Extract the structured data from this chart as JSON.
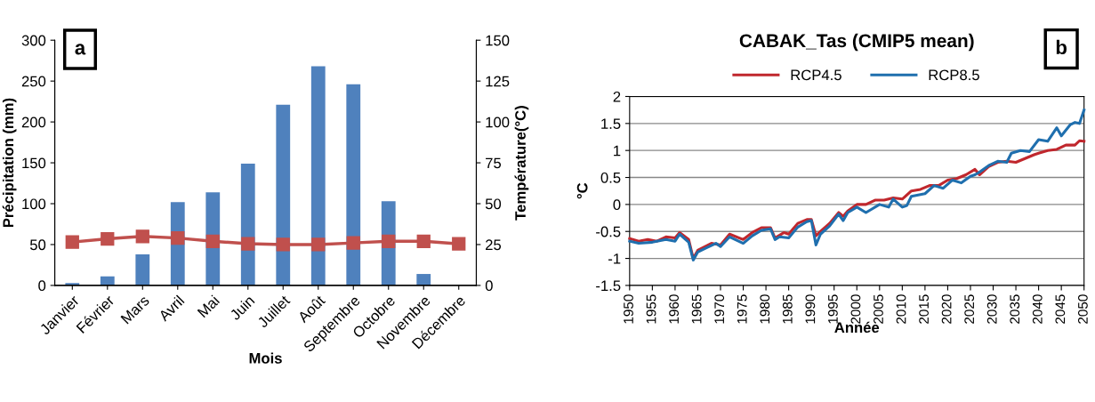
{
  "chart_data": [
    {
      "type": "bar",
      "xlabel": "Mois",
      "ylabel": "Précipitation (mm)",
      "y2label": "Température(°C)",
      "annotations": [
        "a"
      ],
      "categories": [
        "Janvier",
        "Février",
        "Mars",
        "Avril",
        "Mai",
        "Juin",
        "Juillet",
        "Août",
        "Septembre",
        "Octobre",
        "Novembre",
        "Décembre"
      ],
      "series": [
        {
          "type": "bar",
          "color": "#4f81bd",
          "values": [
            3,
            11,
            38,
            102,
            114,
            149,
            221,
            268,
            246,
            103,
            14,
            0
          ]
        },
        {
          "type": "line",
          "axis": "y2",
          "color": "#c0504d",
          "marker": "square",
          "values": [
            26.5,
            28.5,
            30,
            29,
            27,
            25.5,
            25,
            25,
            26,
            27,
            27,
            25.5
          ]
        }
      ],
      "ylim": [
        0,
        300
      ],
      "yticks": [
        0,
        50,
        100,
        150,
        200,
        250,
        300
      ],
      "y2lim": [
        0,
        150
      ],
      "y2ticks": [
        0,
        25,
        50,
        75,
        100,
        125,
        150
      ],
      "grid": false,
      "legend": false
    },
    {
      "type": "line",
      "title": "CABAK_Tas (CMIP5 mean)",
      "xlabel": "Année",
      "ylabel": "°C",
      "annotations": [
        "b"
      ],
      "series": [
        {
          "name": "RCP4.5",
          "color": "#c0272d",
          "x": [
            1950,
            1952,
            1954,
            1956,
            1958,
            1960,
            1961,
            1963,
            1964,
            1965,
            1968,
            1970,
            1972,
            1975,
            1977,
            1979,
            1981,
            1982,
            1984,
            1985,
            1987,
            1989,
            1990,
            1991,
            1992,
            1994,
            1996,
            1997,
            1998,
            2000,
            2002,
            2004,
            2006,
            2008,
            2010,
            2012,
            2014,
            2016,
            2018,
            2020,
            2022,
            2024,
            2026,
            2027,
            2029,
            2031,
            2033,
            2035,
            2037,
            2039,
            2040,
            2042,
            2044,
            2046,
            2048,
            2049,
            2050
          ],
          "values": [
            -0.63,
            -0.68,
            -0.65,
            -0.68,
            -0.6,
            -0.62,
            -0.52,
            -0.65,
            -1.0,
            -0.85,
            -0.72,
            -0.75,
            -0.55,
            -0.65,
            -0.52,
            -0.43,
            -0.43,
            -0.62,
            -0.52,
            -0.55,
            -0.35,
            -0.28,
            -0.28,
            -0.58,
            -0.5,
            -0.35,
            -0.15,
            -0.22,
            -0.12,
            0.0,
            0.0,
            0.08,
            0.08,
            0.12,
            0.1,
            0.25,
            0.28,
            0.35,
            0.35,
            0.45,
            0.48,
            0.55,
            0.65,
            0.55,
            0.7,
            0.78,
            0.8,
            0.78,
            0.85,
            0.92,
            0.95,
            1.0,
            1.02,
            1.1,
            1.1,
            1.18,
            1.17
          ]
        },
        {
          "name": "RCP8.5",
          "color": "#1f6fae",
          "x": [
            1950,
            1952,
            1955,
            1958,
            1960,
            1961,
            1963,
            1964,
            1965,
            1967,
            1969,
            1970,
            1972,
            1975,
            1977,
            1979,
            1981,
            1982,
            1983,
            1985,
            1987,
            1989,
            1990,
            1991,
            1992,
            1994,
            1996,
            1997,
            1998,
            1999,
            2000,
            2002,
            2003,
            2005,
            2007,
            2008,
            2010,
            2011,
            2012,
            2015,
            2017,
            2019,
            2021,
            2023,
            2025,
            2026,
            2027,
            2029,
            2031,
            2033,
            2034,
            2036,
            2038,
            2040,
            2042,
            2044,
            2045,
            2047,
            2048,
            2049,
            2050
          ],
          "values": [
            -0.68,
            -0.72,
            -0.7,
            -0.65,
            -0.68,
            -0.55,
            -0.7,
            -1.03,
            -0.88,
            -0.8,
            -0.72,
            -0.78,
            -0.6,
            -0.72,
            -0.58,
            -0.48,
            -0.45,
            -0.65,
            -0.6,
            -0.62,
            -0.42,
            -0.32,
            -0.3,
            -0.75,
            -0.55,
            -0.4,
            -0.18,
            -0.3,
            -0.15,
            -0.1,
            -0.05,
            -0.15,
            -0.1,
            0.0,
            -0.05,
            0.1,
            -0.05,
            -0.02,
            0.15,
            0.2,
            0.35,
            0.3,
            0.45,
            0.4,
            0.52,
            0.55,
            0.6,
            0.72,
            0.8,
            0.78,
            0.95,
            1.0,
            0.98,
            1.2,
            1.17,
            1.42,
            1.27,
            1.48,
            1.52,
            1.5,
            1.75
          ]
        }
      ],
      "xlim": [
        1950,
        2050
      ],
      "xticks": [
        1950,
        1955,
        1960,
        1965,
        1970,
        1975,
        1980,
        1985,
        1990,
        1995,
        2000,
        2005,
        2010,
        2015,
        2020,
        2025,
        2030,
        2035,
        2040,
        2045,
        2050
      ],
      "ylim": [
        -1.5,
        2
      ],
      "yticks": [
        -1.5,
        -1,
        -0.5,
        0,
        0.5,
        1,
        1.5,
        2
      ],
      "grid": "y",
      "legend": "top"
    }
  ]
}
